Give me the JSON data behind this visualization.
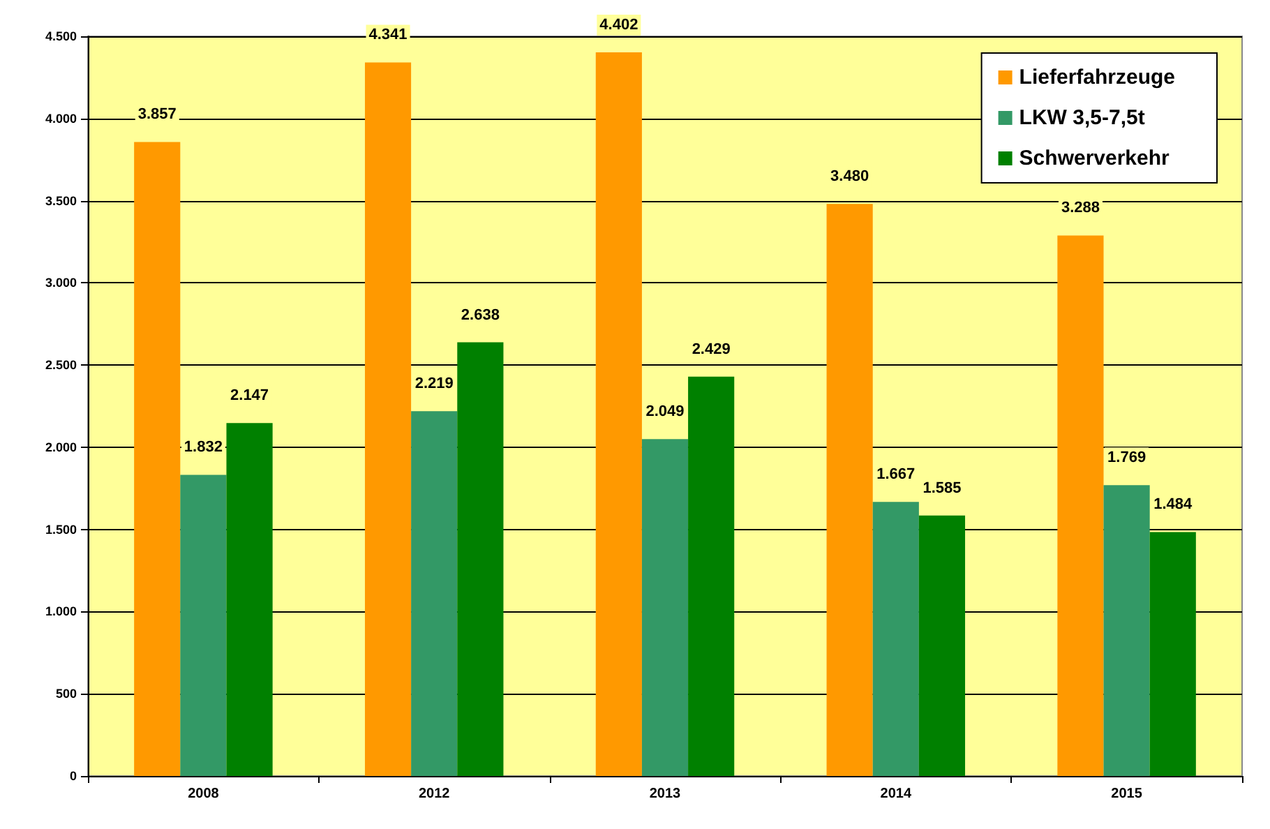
{
  "chart_data": {
    "type": "bar",
    "categories": [
      "2008",
      "2012",
      "2013",
      "2014",
      "2015"
    ],
    "series": [
      {
        "name": "Lieferfahrzeuge",
        "color": "#ff9900",
        "values": [
          3857,
          4341,
          4402,
          3480,
          3288
        ],
        "value_labels": [
          "3.857",
          "4.341",
          "4.402",
          "3.480",
          "3.288"
        ]
      },
      {
        "name": "LKW 3,5-7,5t",
        "color": "#339966",
        "values": [
          1832,
          2219,
          2049,
          1667,
          1769
        ],
        "value_labels": [
          "1.832",
          "2.219",
          "2.049",
          "1.667",
          "1.769"
        ]
      },
      {
        "name": "Schwerverkehr",
        "color": "#008000",
        "values": [
          2147,
          2638,
          2429,
          1585,
          1484
        ],
        "value_labels": [
          "2.147",
          "2.638",
          "2.429",
          "1.585",
          "1.484"
        ]
      }
    ],
    "ylim": [
      0,
      4500
    ],
    "yticks": [
      {
        "value": 0,
        "label": "0"
      },
      {
        "value": 500,
        "label": "500"
      },
      {
        "value": 1000,
        "label": "1.000"
      },
      {
        "value": 1500,
        "label": "1.500"
      },
      {
        "value": 2000,
        "label": "2.000"
      },
      {
        "value": 2500,
        "label": "2.500"
      },
      {
        "value": 3000,
        "label": "3.000"
      },
      {
        "value": 3500,
        "label": "3.500"
      },
      {
        "value": 4000,
        "label": "4.000"
      },
      {
        "value": 4500,
        "label": "4.500"
      }
    ],
    "grid": "y",
    "legend": "top right"
  }
}
